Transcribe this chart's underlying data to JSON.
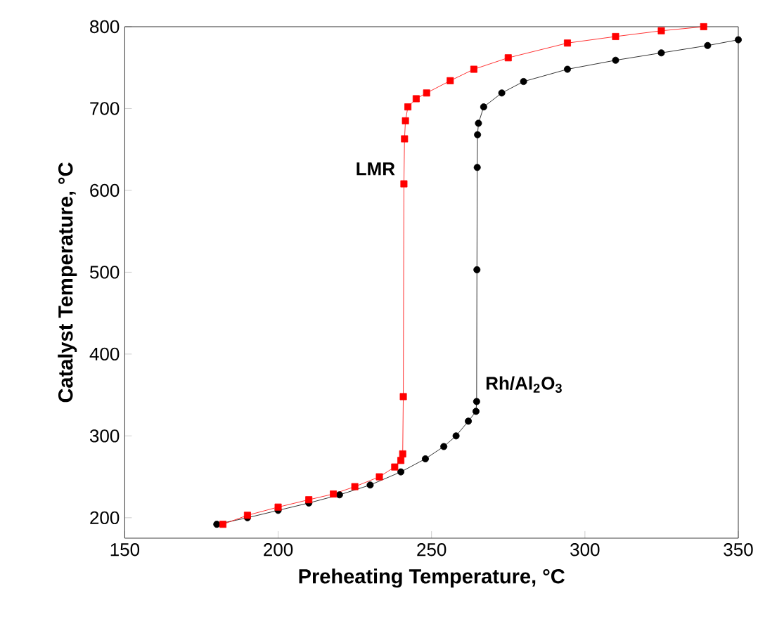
{
  "chart_data": {
    "type": "line",
    "xlabel": "Preheating Temperature, °C",
    "ylabel": "Catalyst Temperature, °C",
    "xlim": [
      150,
      350
    ],
    "ylim": [
      175,
      800
    ],
    "xticks": [
      150,
      200,
      250,
      300,
      350
    ],
    "yticks": [
      200,
      300,
      400,
      500,
      600,
      700,
      800
    ],
    "line_style": "solid",
    "series": [
      {
        "name": "LMR",
        "color": "#ff0000",
        "marker": "square",
        "x": [
          182,
          190,
          200,
          210,
          218,
          225,
          233,
          238,
          240,
          240.6,
          240.8,
          241,
          241.2,
          241.5,
          242.3,
          245,
          248.4,
          256.1,
          263.8,
          275,
          294.3,
          310,
          324.9,
          338.7
        ],
        "values": [
          192,
          203,
          213,
          222,
          229,
          238,
          250,
          262,
          270,
          278,
          348,
          608,
          663,
          685,
          702,
          712,
          719,
          734,
          748,
          762,
          780,
          788,
          795,
          800
        ]
      },
      {
        "name": "Rh/Al$_{2}$O$_{3}$",
        "color": "#000000",
        "marker": "circle",
        "x": [
          180,
          190,
          200,
          210,
          220,
          230,
          240,
          248,
          254,
          258,
          262,
          264.5,
          264.7,
          264.8,
          264.9,
          265,
          265.3,
          267,
          272.9,
          280,
          294.3,
          310,
          324.9,
          340,
          350
        ],
        "values": [
          192,
          200,
          209,
          218,
          228,
          240,
          256,
          272,
          287,
          300,
          318,
          330,
          342,
          503,
          628,
          668,
          682,
          702,
          719,
          733,
          748,
          759,
          768,
          777,
          784
        ]
      }
    ]
  }
}
